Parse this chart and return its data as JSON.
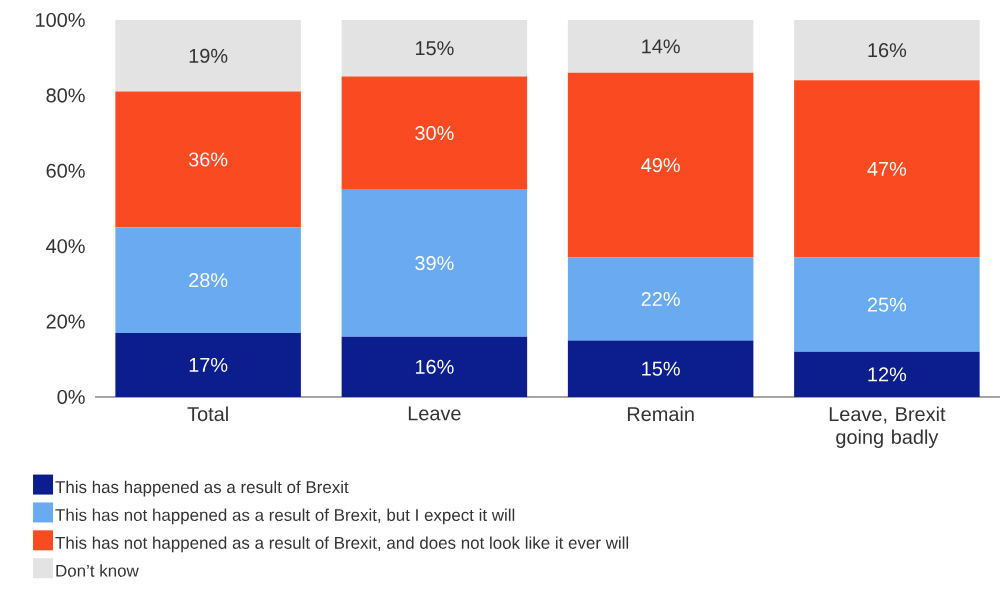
{
  "chart_data": {
    "type": "bar",
    "stacked": true,
    "categories": [
      "Total",
      "Leave",
      "Remain",
      "Leave, Brexit going badly"
    ],
    "series": [
      {
        "name": "This has happened as a result of Brexit",
        "color": "#0c1e8e",
        "values": [
          17,
          16,
          15,
          12
        ],
        "value_labels": [
          "17%",
          "16%",
          "15%",
          "12%"
        ]
      },
      {
        "name": "This has not happened as a result of Brexit, but I expect it will",
        "color": "#6aaaf0",
        "values": [
          28,
          39,
          22,
          25
        ],
        "value_labels": [
          "28%",
          "39%",
          "22%",
          "25%"
        ]
      },
      {
        "name": "This has not happened as a result of Brexit, and does not look like it ever will",
        "color": "#fa4a22",
        "values": [
          36,
          30,
          49,
          47
        ],
        "value_labels": [
          "36%",
          "30%",
          "49%",
          "47%"
        ]
      },
      {
        "name": "Don’t know",
        "color": "#e3e3e3",
        "values": [
          19,
          15,
          14,
          16
        ],
        "value_labels": [
          "19%",
          "15%",
          "14%",
          "16%"
        ]
      }
    ],
    "ylim": [
      0,
      100
    ],
    "yticks": [
      {
        "value": 0,
        "label": "0%"
      },
      {
        "value": 20,
        "label": "20%"
      },
      {
        "value": 40,
        "label": "40%"
      },
      {
        "value": 60,
        "label": "60%"
      },
      {
        "value": 80,
        "label": "80%"
      },
      {
        "value": 100,
        "label": "100%"
      }
    ],
    "legend": "bottom"
  }
}
